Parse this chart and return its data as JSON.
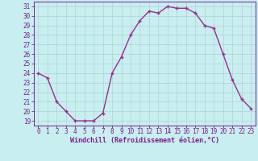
{
  "x": [
    0,
    1,
    2,
    3,
    4,
    5,
    6,
    7,
    8,
    9,
    10,
    11,
    12,
    13,
    14,
    15,
    16,
    17,
    18,
    19,
    20,
    21,
    22,
    23
  ],
  "y": [
    24,
    23.5,
    21,
    20,
    19,
    19,
    19,
    19.8,
    24,
    25.7,
    28,
    29.5,
    30.5,
    30.3,
    31,
    30.8,
    30.8,
    30.3,
    29,
    28.7,
    26,
    23.3,
    21.3,
    20.3
  ],
  "line_color": "#9b2d8e",
  "marker": "+",
  "marker_size": 3.5,
  "bg_color": "#c8eef0",
  "grid_color": "#b0d8da",
  "xlabel": "Windchill (Refroidissement éolien,°C)",
  "ylabel": "",
  "ylim": [
    18.5,
    31.5
  ],
  "xlim": [
    -0.5,
    23.5
  ],
  "yticks": [
    19,
    20,
    21,
    22,
    23,
    24,
    25,
    26,
    27,
    28,
    29,
    30,
    31
  ],
  "xticks": [
    0,
    1,
    2,
    3,
    4,
    5,
    6,
    7,
    8,
    9,
    10,
    11,
    12,
    13,
    14,
    15,
    16,
    17,
    18,
    19,
    20,
    21,
    22,
    23
  ],
  "tick_color": "#7b1d8e",
  "label_fontsize": 6.0,
  "tick_fontsize": 5.5,
  "linewidth": 1.0,
  "marker_linewidth": 1.0
}
